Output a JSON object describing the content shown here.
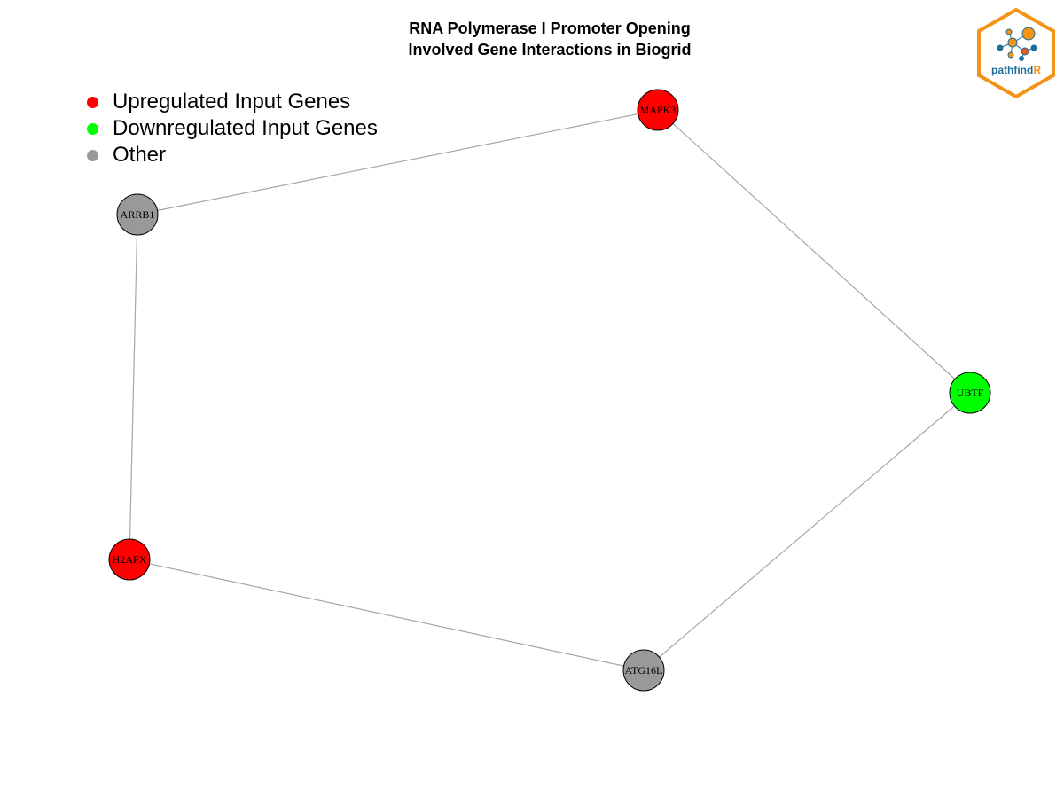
{
  "title": {
    "line1": "RNA Polymerase I Promoter Opening",
    "line2": "Involved Gene Interactions in Biogrid"
  },
  "legend": [
    {
      "label": "Upregulated Input Genes",
      "color": "#ff0000"
    },
    {
      "label": "Downregulated Input Genes",
      "color": "#00ff00"
    },
    {
      "label": "Other",
      "color": "#999999"
    }
  ],
  "colors": {
    "up": "#ff0000",
    "down": "#00ff00",
    "other": "#999999",
    "edge": "#a6a6a6"
  },
  "nodes": [
    {
      "id": "MAPK3",
      "label": "MAPK3",
      "group": "up"
    },
    {
      "id": "ARRB1",
      "label": "ARRB1",
      "group": "other"
    },
    {
      "id": "UBTF",
      "label": "UBTF",
      "group": "down"
    },
    {
      "id": "H2AFX",
      "label": "H2AFX",
      "group": "up"
    },
    {
      "id": "ATG16L",
      "label": "ATG16L",
      "group": "other"
    }
  ],
  "edges": [
    {
      "source": "ARRB1",
      "target": "MAPK3"
    },
    {
      "source": "MAPK3",
      "target": "UBTF"
    },
    {
      "source": "ARRB1",
      "target": "H2AFX"
    },
    {
      "source": "H2AFX",
      "target": "ATG16L"
    },
    {
      "source": "UBTF",
      "target": "ATG16L"
    }
  ],
  "logo": {
    "text_main": "pathfind",
    "text_accent": "R",
    "border_color": "#f39419",
    "text_color": "#1f6f9b",
    "accent_color": "#f39419",
    "icon": "network-icon"
  }
}
